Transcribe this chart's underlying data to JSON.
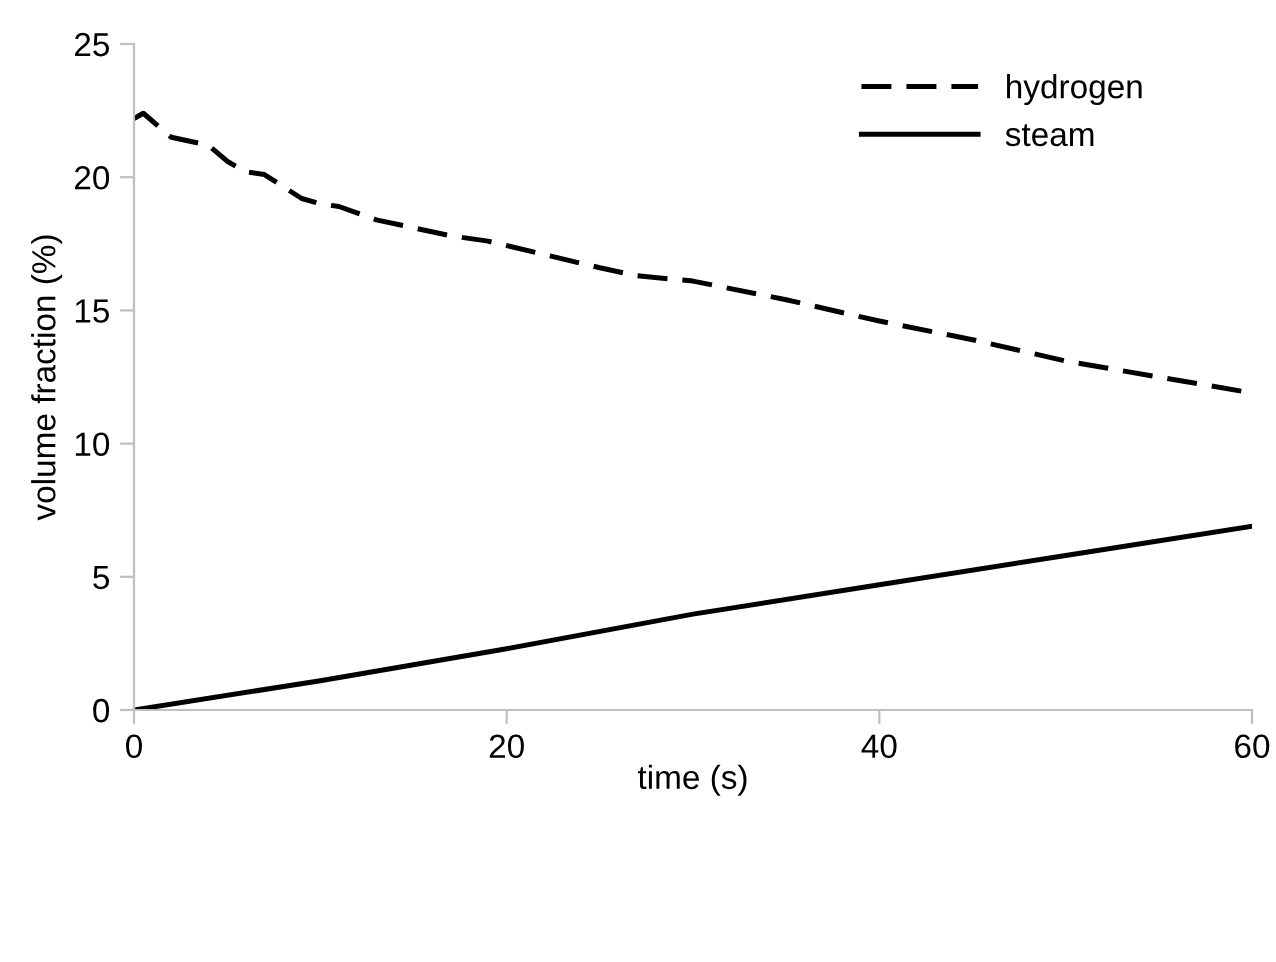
{
  "chart_data": {
    "type": "line",
    "xlabel": "time (s)",
    "ylabel": "volume fraction (%)",
    "xlim": [
      0,
      60
    ],
    "ylim": [
      0,
      25
    ],
    "xticks": [
      0,
      20,
      40,
      60
    ],
    "yticks": [
      0,
      5,
      10,
      15,
      20,
      25
    ],
    "grid": false,
    "legend": "top right",
    "marker": "none",
    "series": [
      {
        "name": "hydrogen",
        "color": "#000000",
        "line_style": "dashed",
        "x": [
          0,
          0.5,
          1,
          2,
          4,
          5,
          6,
          7,
          9,
          10,
          11,
          13,
          15,
          17,
          19,
          22,
          25,
          27,
          30,
          35,
          40,
          45,
          50,
          55,
          60
        ],
        "values": [
          22.2,
          22.4,
          22.1,
          21.5,
          21.2,
          20.6,
          20.2,
          20.1,
          19.2,
          19.0,
          18.9,
          18.4,
          18.1,
          17.8,
          17.6,
          17.1,
          16.6,
          16.3,
          16.1,
          15.4,
          14.6,
          13.9,
          13.1,
          12.5,
          11.9
        ]
      },
      {
        "name": "steam",
        "color": "#000000",
        "line_style": "solid",
        "x": [
          0,
          10,
          20,
          30,
          40,
          50,
          60
        ],
        "values": [
          0,
          1.1,
          2.3,
          3.6,
          4.7,
          5.8,
          6.9
        ]
      }
    ]
  }
}
